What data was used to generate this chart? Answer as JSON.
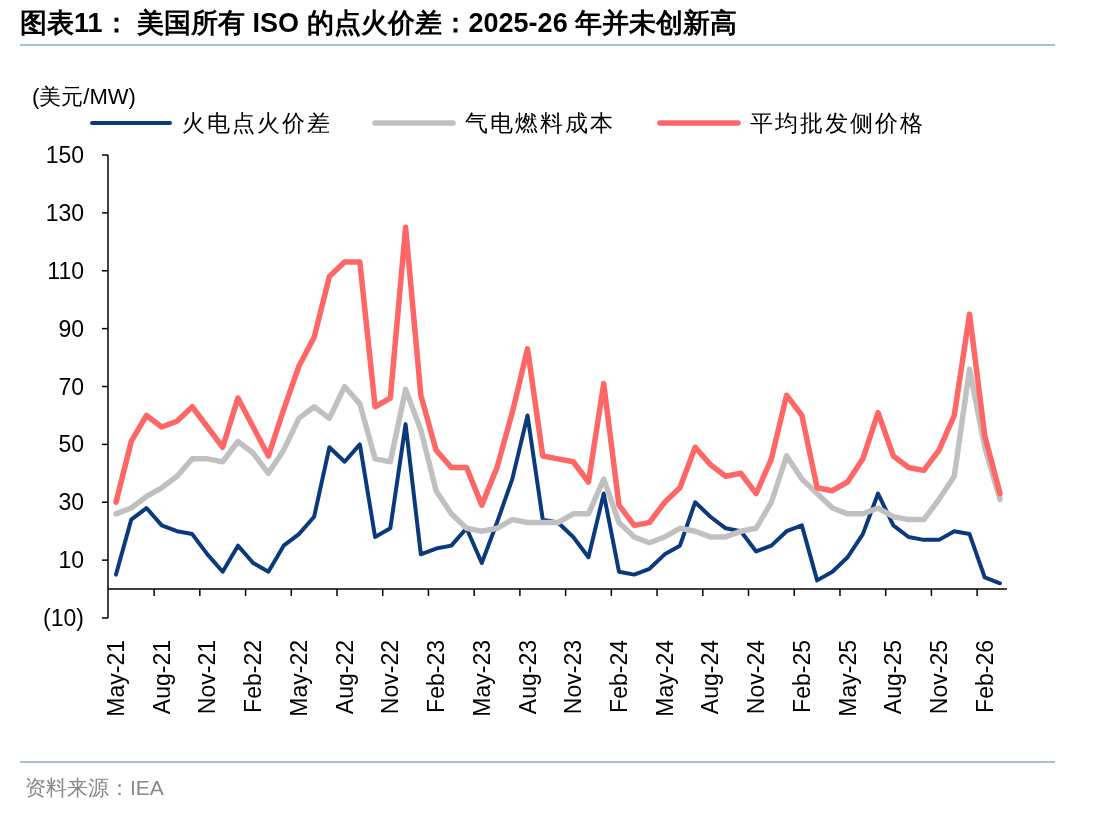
{
  "chart_data": {
    "type": "line",
    "title": "图表11：  美国所有 ISO 的点火价差：2025-26 年并未创新高",
    "ylabel": "(美元/MW)",
    "annotations": [
      "资料来源：IEA"
    ],
    "categories": [
      "May-21",
      null,
      null,
      "Aug-21",
      null,
      null,
      "Nov-21",
      null,
      null,
      "Feb-22",
      null,
      null,
      "May-22",
      null,
      null,
      "Aug-22",
      null,
      null,
      "Nov-22",
      null,
      null,
      "Feb-23",
      null,
      null,
      "May-23",
      null,
      null,
      "Aug-23",
      null,
      null,
      "Nov-23",
      null,
      null,
      "Feb-24",
      null,
      null,
      "May-24",
      null,
      null,
      "Aug-24",
      null,
      null,
      "Nov-24",
      null,
      null,
      "Feb-25",
      null,
      null,
      "May-25",
      null,
      null,
      "Aug-25",
      null,
      null,
      "Nov-25",
      null,
      null,
      "Feb-26",
      null
    ],
    "ylim": [
      -10,
      150
    ],
    "yticks": [
      {
        "value": -10,
        "label": "(10)"
      },
      10,
      30,
      50,
      70,
      90,
      110,
      130,
      150
    ],
    "legend": "top",
    "grid": false,
    "marker": "none",
    "line_style": "solid",
    "series": [
      {
        "name": "火电点火价差",
        "color": "#0b3a7c",
        "values": [
          5,
          24,
          28,
          22,
          20,
          19,
          12,
          6,
          15,
          9,
          6,
          15,
          19,
          25,
          49,
          44,
          50,
          18,
          21,
          57,
          12,
          14,
          15,
          21,
          9,
          23,
          38,
          60,
          24,
          23,
          18,
          11,
          33,
          6,
          5,
          7,
          12,
          15,
          30,
          25,
          21,
          20,
          13,
          15,
          20,
          22,
          3,
          6,
          11,
          19,
          33,
          22,
          18,
          17,
          17,
          20,
          19,
          4,
          2
        ]
      },
      {
        "name": "气电燃料成本",
        "color": "#c0c0c0",
        "values": [
          26,
          28,
          32,
          35,
          39,
          45,
          45,
          44,
          51,
          47,
          40,
          48,
          59,
          63,
          59,
          70,
          64,
          45,
          44,
          69,
          55,
          34,
          26,
          21,
          20,
          21,
          24,
          23,
          23,
          23,
          26,
          26,
          38,
          23,
          18,
          16,
          18,
          21,
          20,
          18,
          18,
          20,
          21,
          30,
          46,
          38,
          33,
          28,
          26,
          26,
          28,
          25,
          24,
          24,
          31,
          39,
          76,
          49,
          31
        ]
      },
      {
        "name": "平均批发侧价格",
        "color": "#ff6666",
        "values": [
          30,
          51,
          60,
          56,
          58,
          63,
          56,
          49,
          66,
          56,
          46,
          62,
          77,
          87,
          108,
          113,
          113,
          63,
          66,
          125,
          67,
          48,
          42,
          42,
          29,
          42,
          61,
          83,
          46,
          45,
          44,
          37,
          71,
          29,
          22,
          23,
          30,
          35,
          49,
          43,
          39,
          40,
          33,
          45,
          67,
          60,
          35,
          34,
          37,
          45,
          61,
          46,
          42,
          41,
          48,
          60,
          95,
          53,
          33
        ]
      }
    ]
  }
}
